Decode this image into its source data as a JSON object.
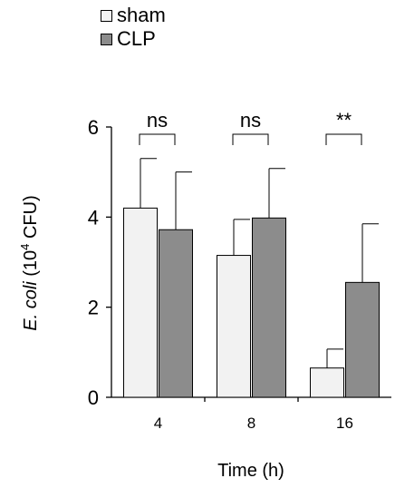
{
  "chart_data": {
    "type": "bar",
    "categories": [
      "4",
      "8",
      "16"
    ],
    "series": [
      {
        "name": "sham",
        "values": [
          4.2,
          3.15,
          0.65
        ],
        "errors": [
          1.1,
          0.8,
          0.42
        ],
        "color": "#f2f2f2"
      },
      {
        "name": "CLP",
        "values": [
          3.72,
          3.98,
          2.55
        ],
        "errors": [
          1.28,
          1.1,
          1.3
        ],
        "color": "#8c8c8c"
      }
    ],
    "significance": [
      "ns",
      "ns",
      "**"
    ],
    "xlabel": "Time (h)",
    "ylabel": {
      "italic": "E. coli",
      "plain": " (10",
      "sup": "4",
      "tail": " CFU)"
    },
    "ylim": [
      0,
      6
    ],
    "yticks": [
      "0",
      "2",
      "4",
      "6"
    ],
    "legend_position": "top-left",
    "grid": false
  }
}
